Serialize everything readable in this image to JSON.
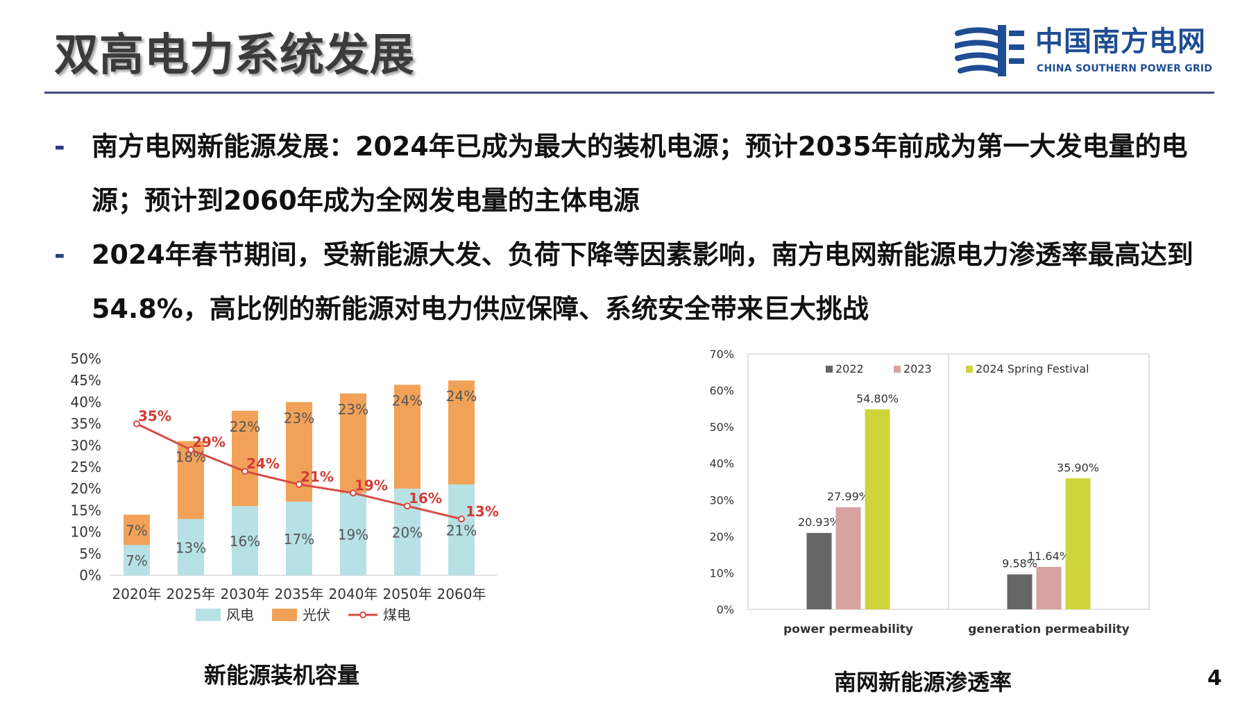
{
  "header": {
    "title": "双高电力系统发展",
    "logo": {
      "cn": "中国南方电网",
      "en": "CHINA SOUTHERN POWER GRID"
    }
  },
  "bullets": [
    {
      "marker": "-",
      "text": "南方电网新能源发展：2024年已成为最大的装机电源；预计2035年前成为第一大发电量的电源；预计到2060年成为全网发电量的主体电源"
    },
    {
      "marker": "-",
      "text": "2024年春节期间，受新能源大发、负荷下降等因素影响，南方电网新能源电力渗透率最高达到54.8%，高比例的新能源对电力供应保障、系统安全带来巨大挑战"
    }
  ],
  "captions": {
    "left": "新能源装机容量",
    "right": "南网新能源渗透率"
  },
  "page_number": "4",
  "colors": {
    "wind": "#b7e1e5",
    "solar": "#f2a258",
    "coal": "#d84a43",
    "coal_label": "#d33b34",
    "bar_2022": "#666666",
    "bar_2023": "#d8a2a2",
    "bar_2024": "#cfd43b",
    "title_gray": "#3b3b3b",
    "brand_blue": "#1e4d93",
    "rule": "#3d4a86"
  },
  "chart_data": [
    {
      "type": "bar",
      "stacked": true,
      "categories": [
        "2020年",
        "2025年",
        "2030年",
        "2035年",
        "2040年",
        "2050年",
        "2060年"
      ],
      "series": [
        {
          "name": "风电",
          "values": [
            7,
            13,
            16,
            17,
            19,
            20,
            21
          ],
          "labels": [
            "7%",
            "13%",
            "16%",
            "17%",
            "19%",
            "20%",
            "21%"
          ]
        },
        {
          "name": "光伏",
          "values": [
            7,
            18,
            22,
            23,
            23,
            24,
            24
          ],
          "labels": [
            "7%",
            "18%",
            "22%",
            "23%",
            "23%",
            "24%",
            "24%"
          ]
        }
      ],
      "line_series": {
        "name": "煤电",
        "values": [
          35,
          29,
          24,
          21,
          19,
          16,
          13
        ],
        "labels": [
          "35%",
          "29%",
          "24%",
          "21%",
          "19%",
          "16%",
          "13%"
        ]
      },
      "ylim": [
        0,
        50
      ],
      "yticks": [
        "0%",
        "5%",
        "10%",
        "15%",
        "20%",
        "25%",
        "30%",
        "35%",
        "40%",
        "45%",
        "50%"
      ],
      "xlabel": "",
      "ylabel": "",
      "legend_position": "bottom",
      "grid": false
    },
    {
      "type": "bar",
      "categories": [
        "power permeability",
        "generation permeability"
      ],
      "series": [
        {
          "name": "2022",
          "values": [
            20.93,
            9.58
          ],
          "labels": [
            "20.93%",
            "9.58%"
          ]
        },
        {
          "name": "2023",
          "values": [
            27.99,
            11.64
          ],
          "labels": [
            "27.99%",
            "11.64%"
          ]
        },
        {
          "name": "2024 Spring Festival",
          "values": [
            54.8,
            35.9
          ],
          "labels": [
            "54.80%",
            "35.90%"
          ]
        }
      ],
      "ylim": [
        0,
        70
      ],
      "yticks": [
        "0%",
        "10%",
        "20%",
        "30%",
        "40%",
        "50%",
        "60%",
        "70%"
      ],
      "xlabel": "",
      "ylabel": "",
      "legend_position": "top",
      "grid": false
    }
  ]
}
